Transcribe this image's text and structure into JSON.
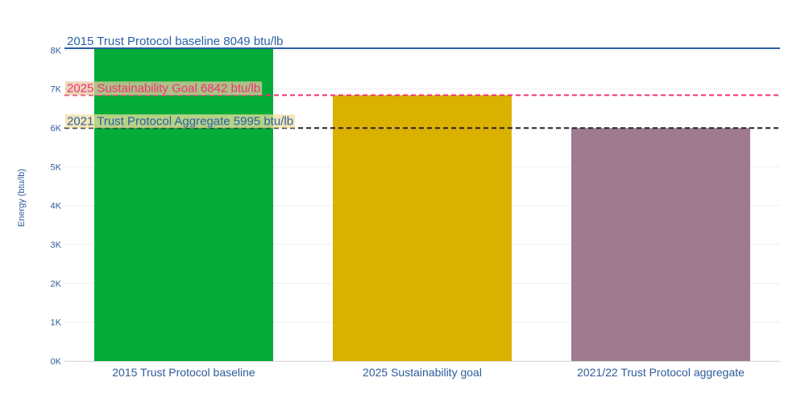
{
  "chart_data": {
    "type": "bar",
    "categories": [
      "2015 Trust Protocol baseline",
      "2025 Sustainability goal",
      "2021/22 Trust Protocol aggregate"
    ],
    "values": [
      8049,
      6842,
      5995
    ],
    "bar_colors": [
      "#02ac37",
      "#dbb100",
      "#9f7a8f"
    ],
    "ylabel": "Energy (btu/lb)",
    "xlabel": "",
    "ylim": [
      0,
      8049
    ],
    "y_ticks": [
      0,
      1000,
      2000,
      3000,
      4000,
      5000,
      6000,
      7000,
      8000
    ],
    "y_tick_labels": [
      "0K",
      "1K",
      "2K",
      "3K",
      "4K",
      "5K",
      "6K",
      "7K",
      "8K"
    ],
    "grid": true,
    "legend": "none",
    "reference_lines": [
      {
        "value": 8049,
        "label": "2015 Trust Protocol baseline 8049 btu/lb",
        "color": "#2a5fa5",
        "style": "solid",
        "label_color": "#2a5fa5",
        "label_bg": ""
      },
      {
        "value": 6842,
        "label": "2025 Sustainability Goal 6842 btu/lb",
        "color": "#f0307a",
        "style": "dashed",
        "label_color": "#f0307a",
        "label_bg": "#e6c9a0"
      },
      {
        "value": 5995,
        "label": "2021 Trust Protocol  Aggregate 5995  btu/lb",
        "color": "#222222",
        "style": "dashed",
        "label_color": "#2a5fa5",
        "label_bg": "#f1dfa0"
      }
    ]
  }
}
